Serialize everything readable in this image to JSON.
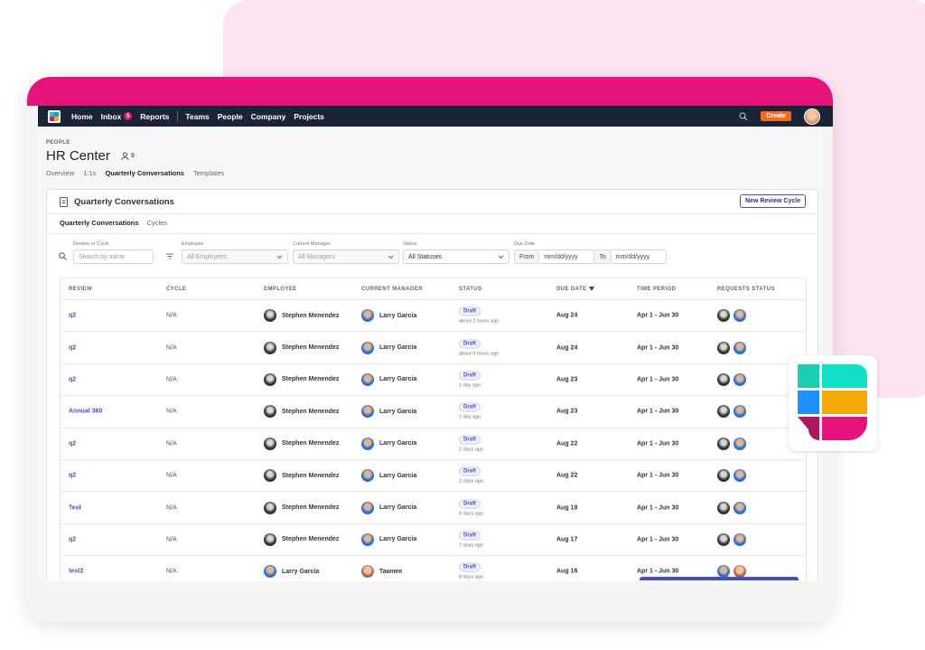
{
  "nav": {
    "items": [
      "Home",
      "Inbox",
      "Reports",
      "Teams",
      "People",
      "Company",
      "Projects"
    ],
    "inbox_badge": 5,
    "create": "Create"
  },
  "header": {
    "section": "PEOPLE",
    "title": "HR Center",
    "member_count": 9,
    "tabs": [
      "Overview",
      "1:1s",
      "Quarterly Conversations",
      "Templates"
    ]
  },
  "card": {
    "title": "Quarterly Conversations",
    "button": "New Review Cycle",
    "subtabs": [
      "Quarterly Conversations",
      "Cycles"
    ],
    "search": {
      "label": "Review or Cycle",
      "placeholder": "Search by name"
    },
    "selects": [
      {
        "label": "Employee",
        "value": "All Employees"
      },
      {
        "label": "Current Manager",
        "value": "All Managers"
      },
      {
        "label": "Status",
        "value": "All Statuses"
      }
    ],
    "date_filter": {
      "label": "Due Date",
      "from": "From",
      "from_placeholder": "mm/dd/yyyy",
      "to": "To",
      "to_placeholder": "mm/dd/yyyy"
    }
  },
  "table": {
    "columns": [
      "REVIEW",
      "CYCLE",
      "EMPLOYEE",
      "CURRENT MANAGER",
      "STATUS",
      "DUE DATE",
      "TIME PERIOD",
      "REQUESTS STATUS"
    ],
    "rows": [
      [
        "q2",
        "N/A",
        "Stephen Menendez",
        "Larry Garcia",
        "Draft",
        "about 2 hours ago",
        "Aug 24",
        "Apr 1 - Jun 30"
      ],
      [
        "q2",
        "N/A",
        "Stephen Menendez",
        "Larry Garcia",
        "Draft",
        "about 9 hours ago",
        "Aug 24",
        "Apr 1 - Jun 30"
      ],
      [
        "q2",
        "N/A",
        "Stephen Menendez",
        "Larry Garcia",
        "Draft",
        "1 day ago",
        "Aug 23",
        "Apr 1 - Jun 30"
      ],
      [
        "Annual 360",
        "N/A",
        "Stephen Menendez",
        "Larry Garcia",
        "Draft",
        "1 day ago",
        "Aug 23",
        "Apr 1 - Jun 30"
      ],
      [
        "q2",
        "N/A",
        "Stephen Menendez",
        "Larry Garcia",
        "Draft",
        "2 days ago",
        "Aug 22",
        "Apr 1 - Jun 30"
      ],
      [
        "q2",
        "N/A",
        "Stephen Menendez",
        "Larry Garcia",
        "Draft",
        "2 days ago",
        "Aug 22",
        "Apr 1 - Jun 30"
      ],
      [
        "Test",
        "N/A",
        "Stephen Menendez",
        "Larry Garcia",
        "Draft",
        "6 days ago",
        "Aug 18",
        "Apr 1 - Jun 30"
      ],
      [
        "q2",
        "N/A",
        "Stephen Menendez",
        "Larry Garcia",
        "Draft",
        "7 days ago",
        "Aug 17",
        "Apr 1 - Jun 30"
      ],
      [
        "test2",
        "N/A",
        "Larry Garcia",
        "Tawnee",
        "Draft",
        "8 days ago",
        "Aug 16",
        "Apr 1 - Jun 30"
      ]
    ]
  }
}
